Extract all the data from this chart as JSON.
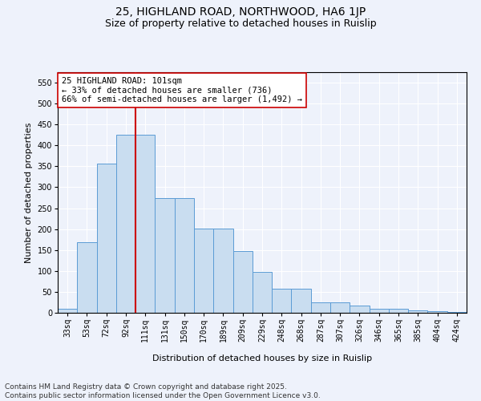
{
  "title_line1": "25, HIGHLAND ROAD, NORTHWOOD, HA6 1JP",
  "title_line2": "Size of property relative to detached houses in Ruislip",
  "xlabel": "Distribution of detached houses by size in Ruislip",
  "ylabel": "Number of detached properties",
  "categories": [
    "33sq",
    "53sq",
    "72sq",
    "92sq",
    "111sq",
    "131sq",
    "150sq",
    "170sq",
    "189sq",
    "209sq",
    "229sq",
    "248sq",
    "268sq",
    "287sq",
    "307sq",
    "326sq",
    "346sq",
    "365sq",
    "385sq",
    "404sq",
    "424sq"
  ],
  "values": [
    10,
    168,
    357,
    425,
    425,
    275,
    275,
    202,
    202,
    148,
    97,
    57,
    57,
    25,
    25,
    18,
    10,
    10,
    6,
    3,
    2
  ],
  "bar_color": "#c9ddf0",
  "bar_edge_color": "#5b9bd5",
  "vline_x": 3.5,
  "vline_color": "#cc0000",
  "annotation_text": "25 HIGHLAND ROAD: 101sqm\n← 33% of detached houses are smaller (736)\n66% of semi-detached houses are larger (1,492) →",
  "annotation_box_color": "#ffffff",
  "annotation_box_edge": "#cc0000",
  "ylim": [
    0,
    575
  ],
  "yticks": [
    0,
    50,
    100,
    150,
    200,
    250,
    300,
    350,
    400,
    450,
    500,
    550
  ],
  "background_color": "#eef2fb",
  "grid_color": "#ffffff",
  "footer_text": "Contains HM Land Registry data © Crown copyright and database right 2025.\nContains public sector information licensed under the Open Government Licence v3.0.",
  "title_fontsize": 10,
  "subtitle_fontsize": 9,
  "axis_label_fontsize": 8,
  "tick_fontsize": 7,
  "annotation_fontsize": 7.5,
  "footer_fontsize": 6.5
}
